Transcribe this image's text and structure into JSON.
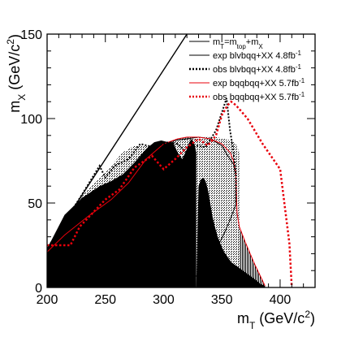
{
  "chart_data": {
    "type": "line",
    "xlim": [
      200,
      430
    ],
    "ylim": [
      0,
      150
    ],
    "xticks": [
      200,
      250,
      300,
      350,
      400
    ],
    "yticks": [
      0,
      50,
      100,
      150
    ],
    "xlabel_main": "m",
    "xlabel_sub": "T",
    "xlabel_unit": " (GeV/c",
    "xlabel_sup": "2",
    "xlabel_close": ")",
    "ylabel_main": "m",
    "ylabel_sub": "X",
    "ylabel_unit": " (GeV/c",
    "ylabel_sup": "2",
    "ylabel_close": ")",
    "grid": false,
    "legend_position": "top-right",
    "legend": [
      {
        "key": "diag",
        "pre": "m",
        "sub1": "T",
        "mid": "=m",
        "sub2": "top",
        "mid2": "+m",
        "sub3": "X",
        "style": "solid",
        "color": "#000000"
      },
      {
        "key": "exp_blv",
        "label": "exp blvbqq+XX 4.8fb",
        "sup": "-1",
        "style": "solid",
        "color": "#000000"
      },
      {
        "key": "obs_blv",
        "label": "obs blvbqq+XX 4.8fb",
        "sup": "-1",
        "style": "dotted",
        "color": "#000000"
      },
      {
        "key": "exp_bqq",
        "label": "exp bqqbqq+XX 5.7fb",
        "sup": "-1",
        "style": "solid",
        "color": "#e8000b"
      },
      {
        "key": "obs_bqq",
        "label": "obs bqqbqq+XX 5.7fb",
        "sup": "-1",
        "style": "dotted",
        "color": "#e8000b"
      }
    ],
    "series": [
      {
        "key": "diag",
        "x": [
          200,
          320
        ],
        "y": [
          23,
          150
        ]
      },
      {
        "key": "exp_blv_fill",
        "x": [
          200,
          230,
          255,
          270,
          285,
          300,
          310,
          320,
          330,
          340,
          350,
          355,
          360,
          362,
          362,
          357,
          352,
          347,
          342,
          337,
          332,
          325,
          320,
          314,
          310,
          306,
          300,
          295,
          289,
          282,
          276,
          270,
          264,
          258,
          252,
          246,
          240,
          228,
          212,
          200
        ],
        "y": [
          23,
          53,
          60,
          66,
          78,
          85,
          87,
          88,
          89,
          88,
          84,
          78,
          73,
          66,
          49,
          40,
          32,
          25,
          19,
          14,
          9,
          5,
          3,
          2,
          2,
          2,
          3,
          5,
          6,
          8,
          9,
          10,
          11,
          12,
          13,
          14,
          15,
          17,
          19,
          20
        ]
      },
      {
        "key": "exp_bqq_fill",
        "x": [
          200,
          215,
          235,
          255,
          270,
          285,
          300,
          312,
          320,
          325,
          330,
          340,
          350,
          357,
          360,
          362,
          362,
          363,
          365,
          370,
          378,
          387,
          387,
          200
        ],
        "y": [
          21,
          31,
          42,
          52,
          62,
          76,
          85,
          88,
          89,
          89,
          89,
          88,
          85,
          80,
          75,
          68,
          52,
          44,
          36,
          27,
          14,
          1,
          0,
          0
        ]
      },
      {
        "key": "obs_blv_white_hatch",
        "x": [
          200,
          225,
          240,
          250,
          265,
          275,
          285,
          300,
          310,
          320,
          330,
          338,
          345,
          352,
          358,
          362,
          365,
          365,
          352,
          345,
          335,
          325,
          315,
          305,
          295,
          285,
          275,
          263,
          250,
          235,
          215,
          200
        ],
        "y": [
          23,
          50,
          62,
          68,
          80,
          84,
          84,
          85,
          87,
          88,
          89,
          89,
          89,
          88,
          87,
          85,
          80,
          0,
          0,
          0,
          0,
          0,
          0,
          0,
          0,
          0,
          0,
          0,
          0,
          0,
          0,
          0
        ]
      },
      {
        "key": "obs_blv",
        "x": [
          200,
          230,
          245,
          250,
          258,
          270,
          280,
          292,
          304,
          312,
          320,
          328,
          336,
          345,
          354,
          357,
          360,
          362,
          362
        ],
        "y": [
          23,
          55,
          72,
          65,
          72,
          76,
          85,
          83,
          86,
          85,
          80,
          84,
          83,
          93,
          112,
          93,
          80,
          67,
          50
        ]
      },
      {
        "key": "exp_bqq",
        "x": [
          200,
          215,
          235,
          255,
          270,
          285,
          300,
          312,
          320,
          325,
          330,
          340,
          350,
          357,
          360,
          362,
          363,
          365,
          370,
          378,
          387
        ],
        "y": [
          21,
          31,
          42,
          52,
          62,
          76,
          85,
          88,
          89,
          89,
          89,
          88,
          85,
          80,
          75,
          68,
          44,
          36,
          27,
          14,
          1
        ]
      },
      {
        "key": "obs_bqq",
        "x": [
          200,
          220,
          228,
          250,
          262,
          275,
          290,
          300,
          310,
          320,
          330,
          338,
          345,
          350,
          355,
          358,
          362,
          372,
          385,
          400,
          408,
          410
        ],
        "y": [
          25,
          25,
          36,
          52,
          58,
          71,
          78,
          70,
          76,
          83,
          88,
          84,
          90,
          102,
          108,
          110,
          108,
          100,
          85,
          70,
          26,
          0
        ]
      },
      {
        "key": "black_fill_bump",
        "x": [
          200,
          215,
          230,
          245,
          255,
          265,
          275,
          285,
          292,
          298,
          304,
          308,
          312,
          316,
          320,
          322,
          324,
          326,
          328,
          328,
          325,
          320,
          315,
          310,
          305,
          300,
          295,
          290,
          285,
          280,
          275,
          270,
          265,
          260,
          255,
          250,
          245,
          240,
          230,
          220,
          210,
          200
        ],
        "y": [
          23,
          43,
          53,
          60,
          63,
          67,
          74,
          82,
          86,
          87,
          86,
          86,
          80,
          76,
          82,
          86,
          88,
          86,
          80,
          0,
          0,
          0,
          0,
          0,
          0,
          0,
          0,
          0,
          0,
          0,
          0,
          0,
          0,
          0,
          0,
          0,
          0,
          0,
          0,
          0,
          0,
          0
        ]
      },
      {
        "key": "black_fill_lower",
        "x": [
          328,
          330,
          332,
          334,
          336,
          338,
          340,
          342,
          344,
          346,
          348,
          350,
          352,
          354,
          356,
          358,
          360,
          362,
          364,
          366,
          368,
          370,
          372,
          374,
          376,
          378,
          380,
          383,
          387,
          387,
          328
        ],
        "y": [
          0,
          60,
          64,
          65,
          63,
          58,
          50,
          42,
          36,
          31,
          27,
          24,
          21,
          19,
          17,
          15,
          14,
          13,
          12,
          11,
          10,
          9,
          8,
          7,
          6,
          5,
          4,
          2,
          1,
          0,
          0
        ]
      }
    ]
  }
}
